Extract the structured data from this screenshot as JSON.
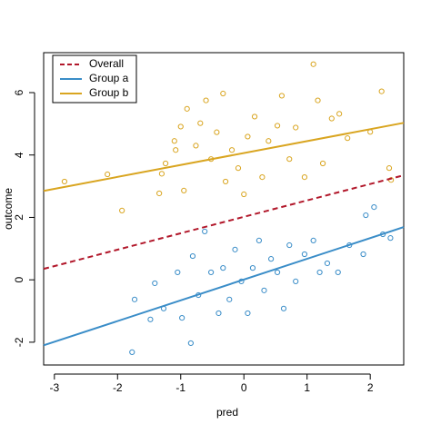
{
  "chart_data": {
    "type": "scatter",
    "xlabel": "pred",
    "ylabel": "outcome",
    "xlim": [
      -3.17,
      2.53
    ],
    "ylim": [
      -2.73,
      7.28
    ],
    "xticks": [
      -3,
      -2,
      -1,
      0,
      1,
      2
    ],
    "yticks": [
      -2,
      0,
      2,
      4,
      6
    ],
    "legend": "top-left",
    "series": [
      {
        "name": "Group a",
        "color": "#3a8dc8",
        "x": [
          -1.77,
          -1.73,
          -1.48,
          -1.41,
          -1.27,
          -1.05,
          -0.98,
          -0.84,
          -0.81,
          -0.72,
          -0.62,
          -0.52,
          -0.4,
          -0.33,
          -0.23,
          -0.14,
          -0.04,
          0.06,
          0.14,
          0.24,
          0.32,
          0.43,
          0.53,
          0.63,
          0.72,
          0.82,
          0.96,
          1.1,
          1.2,
          1.32,
          1.49,
          1.67,
          1.89,
          1.93,
          2.06,
          2.2,
          2.32
        ],
        "values": [
          -2.32,
          -0.63,
          -1.27,
          -0.11,
          -0.92,
          0.24,
          -1.22,
          -2.03,
          0.76,
          -0.49,
          1.55,
          0.24,
          -1.07,
          0.38,
          -0.63,
          0.97,
          -0.05,
          -1.07,
          0.38,
          1.26,
          -0.34,
          0.67,
          0.24,
          -0.92,
          1.11,
          -0.05,
          0.82,
          1.26,
          0.24,
          0.53,
          0.24,
          1.11,
          0.82,
          2.07,
          2.33,
          1.46,
          1.34
        ]
      },
      {
        "name": "Group b",
        "color": "#d9a520",
        "x": [
          -2.84,
          -2.16,
          -1.93,
          -1.34,
          -1.3,
          -1.24,
          -1.1,
          -1.08,
          -1.0,
          -0.95,
          -0.9,
          -0.76,
          -0.69,
          -0.6,
          -0.52,
          -0.43,
          -0.33,
          -0.29,
          -0.19,
          -0.09,
          0,
          0.06,
          0.17,
          0.29,
          0.39,
          0.53,
          0.6,
          0.72,
          0.82,
          0.96,
          1.1,
          1.17,
          1.25,
          1.39,
          1.51,
          1.64,
          2.0,
          2.18,
          2.3,
          2.33
        ],
        "values": [
          3.15,
          3.38,
          2.22,
          2.77,
          3.4,
          3.73,
          4.45,
          4.16,
          4.91,
          2.86,
          5.48,
          4.3,
          5.02,
          5.75,
          3.87,
          4.73,
          5.97,
          3.15,
          4.16,
          3.58,
          2.74,
          4.59,
          5.23,
          3.29,
          4.45,
          4.94,
          5.9,
          3.87,
          4.88,
          3.29,
          6.91,
          5.75,
          3.73,
          5.17,
          5.32,
          4.54,
          4.74,
          6.04,
          3.58,
          3.2
        ]
      }
    ],
    "lines": [
      {
        "name": "Overall",
        "color": "#b2182b",
        "dashed": true,
        "x": [
          -3.17,
          2.53
        ],
        "values": [
          0.35,
          3.35
        ]
      },
      {
        "name": "Group a",
        "color": "#3a8dc8",
        "dashed": false,
        "x": [
          -3.17,
          2.53
        ],
        "values": [
          -2.1,
          1.69
        ]
      },
      {
        "name": "Group b",
        "color": "#d9a520",
        "dashed": false,
        "x": [
          -3.17,
          2.53
        ],
        "values": [
          2.85,
          5.03
        ]
      }
    ]
  }
}
